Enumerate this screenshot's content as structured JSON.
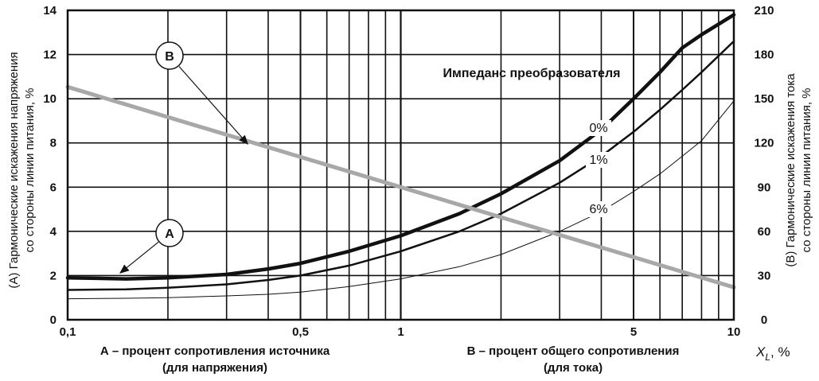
{
  "chart_data": {
    "type": "line",
    "x_scale": "log",
    "xlim": [
      0.1,
      10
    ],
    "x_ticks": [
      0.1,
      0.5,
      1,
      5,
      10
    ],
    "x_tick_labels": [
      "0,1",
      "0,5",
      "1",
      "5",
      "10"
    ],
    "xlabel_A_line1": "А – процент сопротивления источника",
    "xlabel_A_line2": "(для напряжения)",
    "xlabel_B_line1": "В – процент общего сопротивления",
    "xlabel_B_line2": "(для тока)",
    "xlabel_symbol": "X",
    "xlabel_sub": "L",
    "xlabel_unit": ", %",
    "y_left": {
      "lim": [
        0,
        14
      ],
      "ticks": [
        "0",
        "2",
        "4",
        "6",
        "8",
        "10",
        "12",
        "14"
      ],
      "label_line1": "(А) Гармонические искажения напряжения",
      "label_line2": "со стороны линии питания, %"
    },
    "y_right": {
      "lim": [
        0,
        210
      ],
      "ticks": [
        "0",
        "30",
        "60",
        "90",
        "120",
        "150",
        "180",
        "210"
      ],
      "label_line1": "(В) Гармонические искажения тока",
      "label_line2": "со стороны линии питания, %"
    },
    "legend_title": "Импеданс преобразователя",
    "grid": true,
    "series": [
      {
        "name": "0%",
        "axis": "left",
        "x": [
          0.1,
          0.15,
          0.2,
          0.3,
          0.4,
          0.5,
          0.7,
          1,
          1.5,
          2,
          3,
          4,
          5,
          6,
          7,
          8,
          10
        ],
        "y": [
          1.9,
          1.85,
          1.9,
          2.05,
          2.3,
          2.55,
          3.1,
          3.8,
          4.8,
          5.7,
          7.2,
          8.6,
          10.0,
          11.2,
          12.3,
          12.9,
          13.8
        ]
      },
      {
        "name": "1%",
        "axis": "left",
        "x": [
          0.1,
          0.15,
          0.2,
          0.3,
          0.4,
          0.5,
          0.7,
          1,
          1.5,
          2,
          3,
          4,
          5,
          6,
          7,
          8,
          10
        ],
        "y": [
          1.35,
          1.38,
          1.45,
          1.6,
          1.8,
          2.0,
          2.45,
          3.1,
          4.0,
          4.8,
          6.2,
          7.4,
          8.5,
          9.5,
          10.4,
          11.2,
          12.6
        ]
      },
      {
        "name": "6%",
        "axis": "left",
        "x": [
          0.1,
          0.15,
          0.2,
          0.3,
          0.4,
          0.5,
          0.7,
          1,
          1.5,
          2,
          3,
          4,
          5,
          6,
          7,
          8,
          10
        ],
        "y": [
          0.95,
          0.97,
          1.0,
          1.08,
          1.15,
          1.25,
          1.5,
          1.85,
          2.4,
          2.95,
          4.0,
          4.9,
          5.8,
          6.6,
          7.4,
          8.1,
          9.9
        ]
      },
      {
        "name": "B",
        "axis": "right",
        "x": [
          0.1,
          10
        ],
        "y": [
          158,
          22
        ]
      }
    ],
    "markers": [
      {
        "letter": "A",
        "target_x": 0.118,
        "target_y": 1.9
      },
      {
        "letter": "B",
        "target_x": 0.34,
        "target_y": 8.3
      }
    ]
  }
}
